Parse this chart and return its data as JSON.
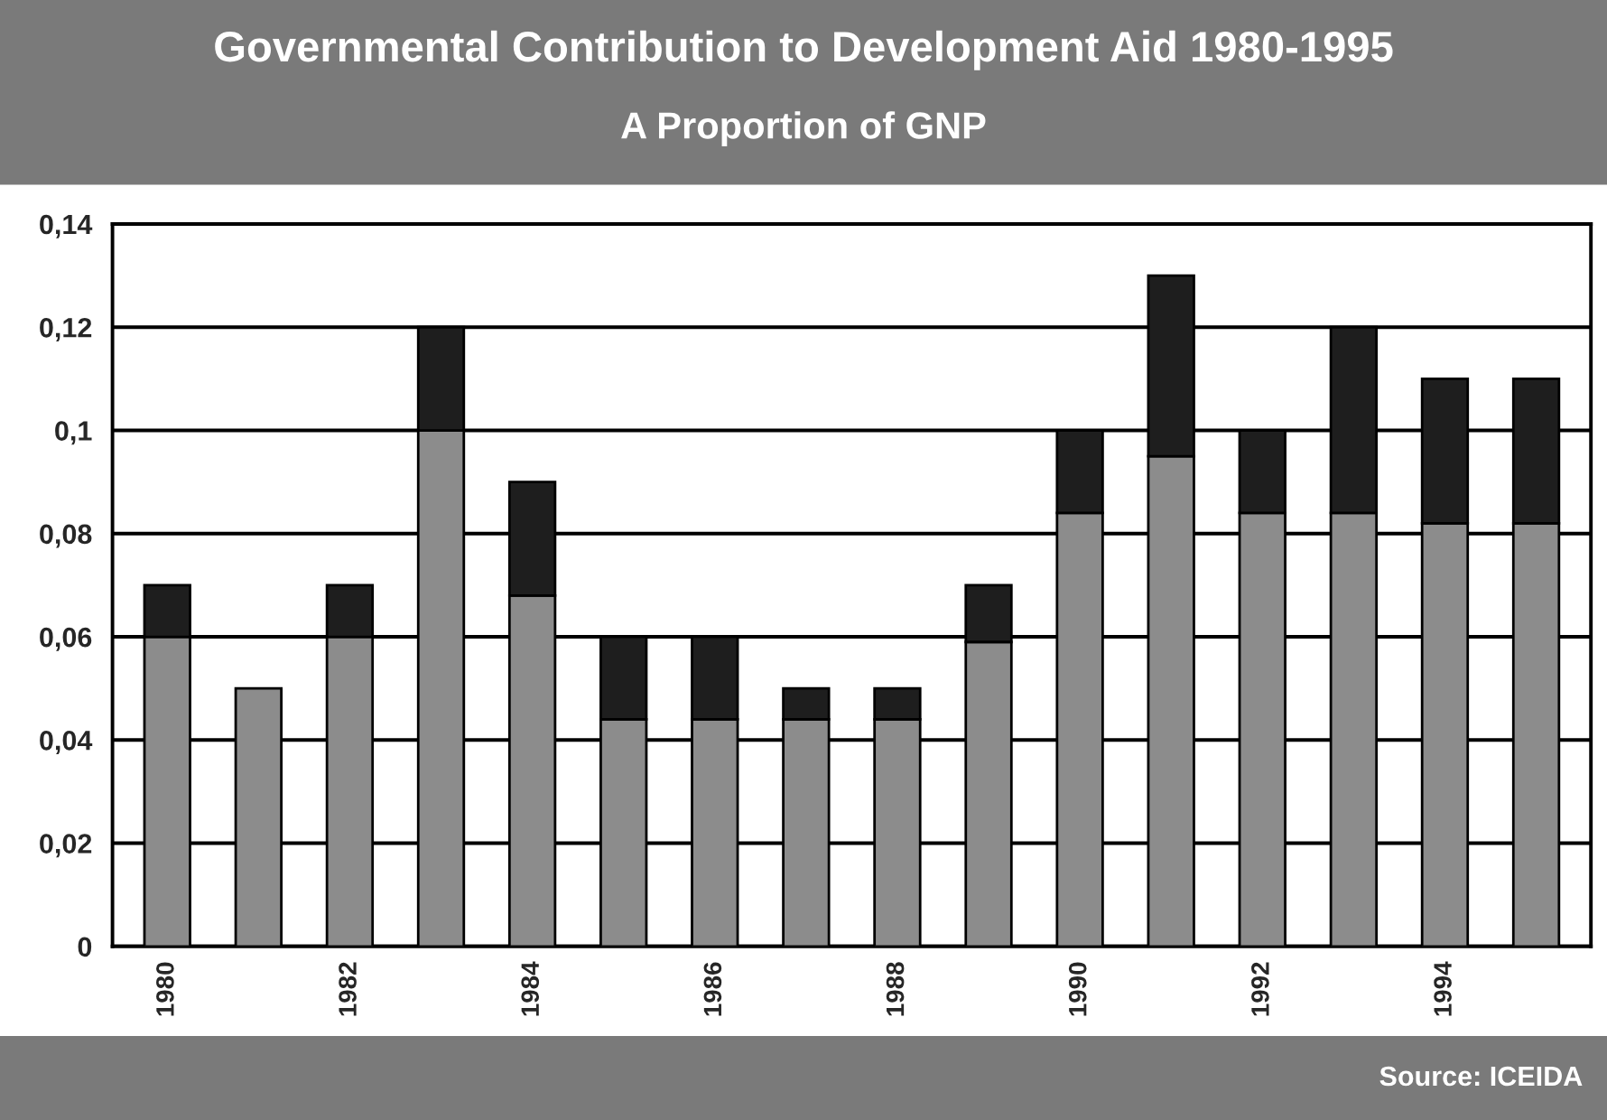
{
  "chart_data": {
    "type": "bar",
    "title": "Governmental Contribution to Development Aid 1980-1995",
    "subtitle": "A Proportion of GNP",
    "categories": [
      "1980",
      null,
      "1982",
      null,
      "1984",
      null,
      "1986",
      null,
      "1988",
      null,
      "1990",
      null,
      "1992",
      null,
      "1994",
      null
    ],
    "stacked": true,
    "series": [
      {
        "color": "#8c8c8c",
        "values": [
          0.06,
          0.05,
          0.06,
          0.1,
          0.068,
          0.044,
          0.044,
          0.044,
          0.044,
          0.059,
          0.084,
          0.095,
          0.084,
          0.084,
          0.082,
          0.082
        ]
      },
      {
        "color": "#1e1e1e",
        "values": [
          0.01,
          null,
          0.01,
          0.02,
          0.022,
          0.016,
          0.016,
          0.006,
          0.006,
          0.011,
          0.016,
          0.035,
          0.016,
          0.036,
          0.028,
          0.028
        ]
      }
    ],
    "ylim": [
      0,
      0.14
    ],
    "yticks": [
      {
        "value": 0,
        "label": "0"
      },
      {
        "value": 0.02,
        "label": "0,02"
      },
      {
        "value": 0.04,
        "label": "0,04"
      },
      {
        "value": 0.06,
        "label": "0,06"
      },
      {
        "value": 0.08,
        "label": "0,08"
      },
      {
        "value": 0.1,
        "label": "0,1"
      },
      {
        "value": 0.12,
        "label": "0,12"
      },
      {
        "value": 0.14,
        "label": "0,14"
      }
    ],
    "grid": "y",
    "annotations": [
      "Source: ICEIDA"
    ]
  }
}
